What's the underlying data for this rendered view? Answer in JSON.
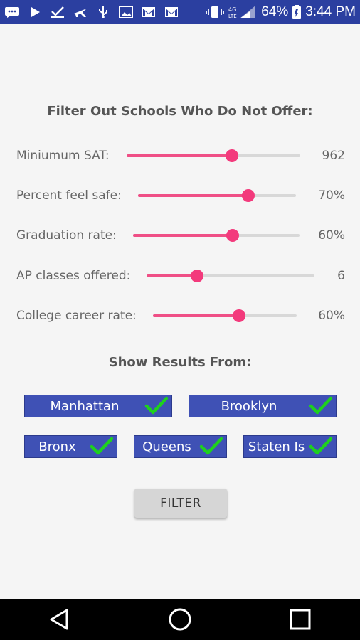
{
  "status_bar": {
    "icons": [
      "messenger-icon",
      "play-icon",
      "download-done-icon",
      "airplane-icon",
      "usb-icon",
      "image-icon",
      "gmail-icon",
      "gmail-icon",
      "vibrate-icon",
      "lte-signal-icon",
      "battery-icon"
    ],
    "network_label": "4G LTE",
    "battery": "64%",
    "time": "3:44 PM",
    "color": "#2b3fa0"
  },
  "filter_section": {
    "title": "Filter Out Schools Who Do Not Offer:",
    "sliders": [
      {
        "label": "Miniumum SAT:",
        "value": "962",
        "fraction": 0.61
      },
      {
        "label": "Percent feel safe:",
        "value": "70%",
        "fraction": 0.7
      },
      {
        "label": "Graduation rate:",
        "value": "60%",
        "fraction": 0.6
      },
      {
        "label": "AP classes offered:",
        "value": "6",
        "fraction": 0.3
      },
      {
        "label": "College career rate:",
        "value": "60%",
        "fraction": 0.6
      }
    ],
    "accent_color": "#f33a7c"
  },
  "results_section": {
    "title": "Show Results From:",
    "boroughs": [
      {
        "label": "Manhattan",
        "checked": true
      },
      {
        "label": "Brooklyn",
        "checked": true
      },
      {
        "label": "Bronx",
        "checked": true
      },
      {
        "label": "Queens",
        "checked": true
      },
      {
        "label": "Staten Is",
        "checked": true
      }
    ],
    "button_color": "#3f51b5",
    "check_color": "#1ed11e"
  },
  "filter_button": {
    "label": "FILTER"
  },
  "nav_bar": {
    "icons": [
      "back-icon",
      "home-icon",
      "recents-icon"
    ]
  }
}
